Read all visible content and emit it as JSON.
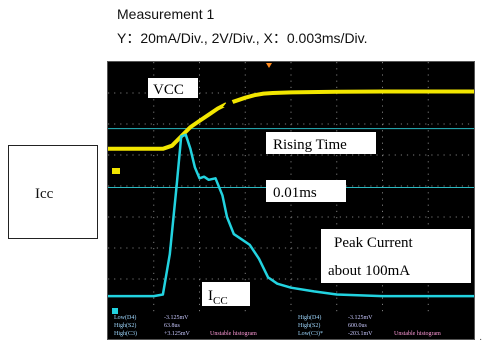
{
  "header": {
    "title": "Measurement 1",
    "scale_text": "Y：20mA/Div., 2V/Div., X：0.003ms/Div."
  },
  "side_label": "Icc",
  "annotations": {
    "vcc": "VCC",
    "rising_time": "Rising Time",
    "rising_value": "0.01ms",
    "peak_line1": "Peak Current",
    "peak_line2": "about 100mA",
    "icc_main": "I",
    "icc_sub": "CC"
  },
  "readout": {
    "row1": [
      "Low(D4)",
      "-3.125mV",
      "High(D4)",
      "-3.125mV"
    ],
    "row2": [
      "High(S2)",
      "63.8us",
      "High(S2)",
      "600.0us"
    ],
    "row3": [
      "High(C3)",
      "+3.125mV",
      "Unstable histogram",
      "Low(C3)*",
      "-203.1mV",
      "Unstable histogram"
    ]
  },
  "colors": {
    "vcc_trace": "#f2e600",
    "icc_trace": "#22d3e0",
    "grid": "#7a7a7a",
    "cursor_line": "#2ab8c0",
    "annotation_text": "#000000",
    "background": "#000000"
  },
  "chart_data": {
    "type": "line",
    "title": "",
    "xlabel": "",
    "ylabel": "",
    "x_per_div": "0.003ms/Div.",
    "grid": true,
    "series": [
      {
        "name": "VCC",
        "x_div": [
          0,
          0.5,
          1.0,
          1.2,
          1.4,
          1.6,
          1.8,
          2.0,
          2.2,
          2.4,
          2.6,
          2.8,
          3.0,
          3.2,
          3.4,
          3.6,
          4.0,
          5.0,
          6.0,
          7.0,
          8.0
        ],
        "y_div": [
          5.2,
          5.2,
          5.2,
          5.2,
          5.3,
          5.6,
          5.9,
          6.1,
          6.3,
          6.5,
          6.65,
          6.75,
          6.85,
          6.93,
          6.98,
          7.0,
          7.02,
          7.04,
          7.05,
          7.05,
          7.05
        ]
      },
      {
        "name": "I_CC",
        "x_div": [
          0,
          0.5,
          1.0,
          1.2,
          1.35,
          1.5,
          1.6,
          1.7,
          1.8,
          1.9,
          2.0,
          2.1,
          2.2,
          2.35,
          2.5,
          2.6,
          2.75,
          2.9,
          3.1,
          3.3,
          3.5,
          3.7,
          4.0,
          4.5,
          5.0,
          6.0,
          7.0,
          8.0
        ],
        "y_div": [
          0.45,
          0.45,
          0.45,
          0.5,
          1.8,
          4.0,
          5.6,
          5.65,
          5.2,
          4.6,
          4.25,
          4.3,
          4.2,
          4.25,
          3.7,
          3.0,
          2.45,
          2.3,
          2.1,
          1.65,
          1.05,
          0.85,
          0.72,
          0.6,
          0.5,
          0.45,
          0.45,
          0.45
        ]
      }
    ],
    "markers": {
      "rising_time_cursors_y_div": [
        5.85,
        3.95
      ]
    }
  }
}
